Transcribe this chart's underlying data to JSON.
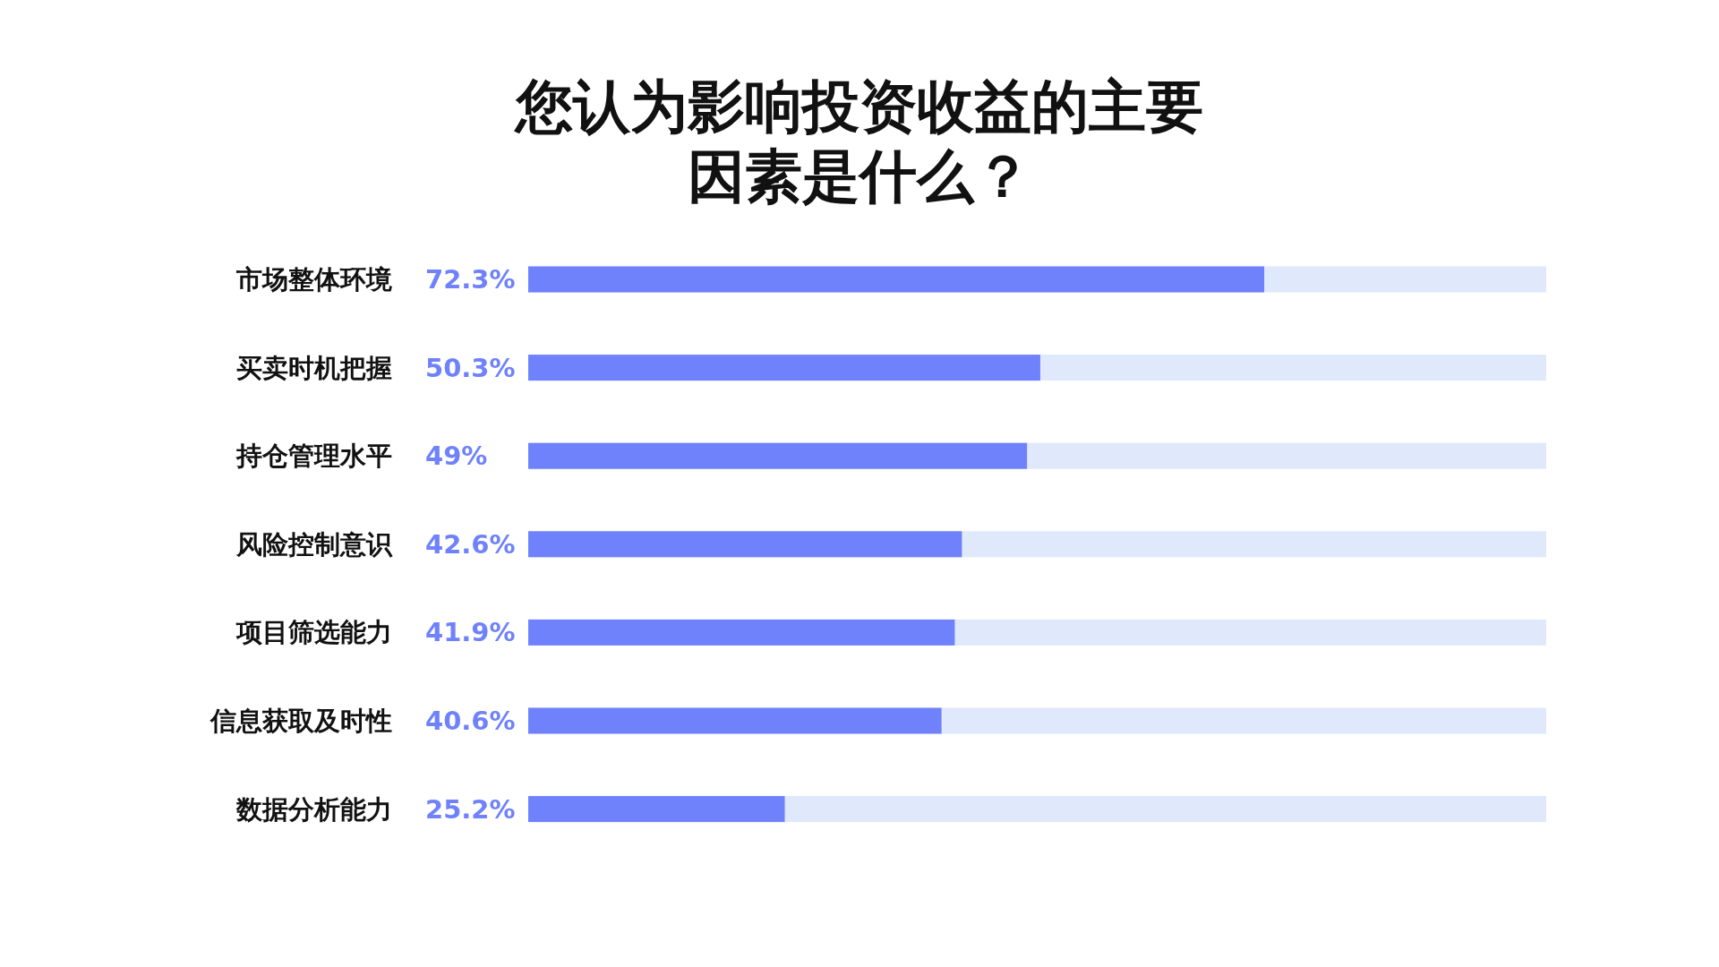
{
  "chart_data": {
    "type": "bar",
    "orientation": "horizontal",
    "title": "您认为影响投资收益的主要因素是什么？",
    "categories": [
      "市场整体环境",
      "买卖时机把握",
      "持仓管理水平",
      "风险控制意识",
      "项目筛选能力",
      "信息获取及时性",
      "数据分析能力"
    ],
    "series": [
      {
        "color": "#6f82fb",
        "values": [
          72.3,
          50.3,
          49,
          42.6,
          41.9,
          40.6,
          25.2
        ],
        "value_labels": [
          "72.3%",
          "50.3%",
          "49%",
          "42.6%",
          "41.9%",
          "40.6%",
          "25.2%"
        ]
      }
    ],
    "xlim": [
      0,
      100
    ],
    "tick_labels": "y"
  }
}
